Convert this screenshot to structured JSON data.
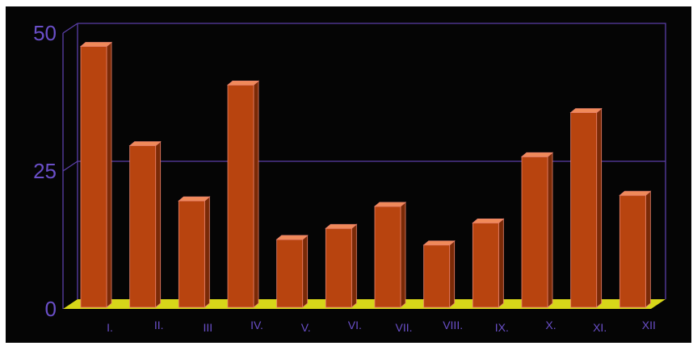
{
  "chart_data": {
    "type": "bar",
    "categories": [
      "I.",
      "II.",
      "III",
      "IV.",
      "V.",
      "VI.",
      "VII.",
      "VIII.",
      "IX.",
      "X.",
      "XI.",
      "XII"
    ],
    "values": [
      47,
      29,
      19,
      40,
      12,
      14,
      18,
      11,
      15,
      27,
      35,
      20
    ],
    "title": "",
    "xlabel": "",
    "ylabel": "",
    "ylim": [
      0,
      50
    ],
    "yticks": [
      "0",
      "25",
      "50"
    ],
    "grid": "horizontal line at 25",
    "legend": "none",
    "colors": {
      "background": "#050505",
      "bar_front": "#b8440f",
      "bar_side": "#7a2a07",
      "bar_top": "#f08a5a",
      "bar_outline": "#e8806a",
      "floor": "#d7d619",
      "axis": "#5b3fa8",
      "tick_text": "#6a4fc8"
    }
  }
}
